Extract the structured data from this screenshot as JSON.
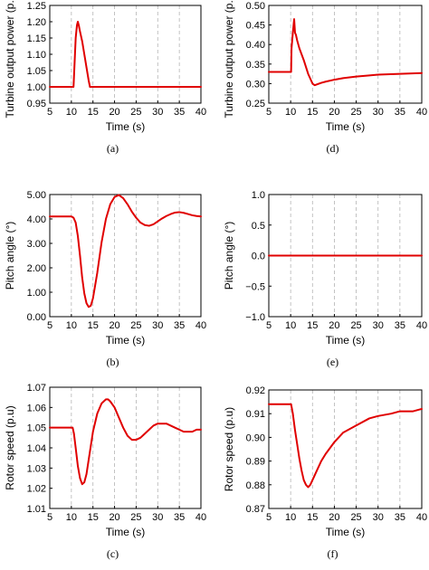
{
  "style": {
    "line_color": "#e00000",
    "grid_color": "#b4b4b4",
    "axis_color": "#000000"
  },
  "chart_data": [
    {
      "type": "line",
      "caption": "(a)",
      "xlabel": "Time (s)",
      "ylabel": "Turbine output power (p.u)",
      "xlim": [
        5,
        40
      ],
      "ylim": [
        0.95,
        1.25
      ],
      "xticks": [
        5,
        10,
        15,
        20,
        25,
        30,
        35,
        40
      ],
      "yticks": [
        0.95,
        1.0,
        1.05,
        1.1,
        1.15,
        1.2,
        1.25
      ],
      "ytick_labels": [
        "0.95",
        "1.00",
        "1.05",
        "1.10",
        "1.15",
        "1.20",
        "1.25"
      ],
      "grid": "vertical-dashed",
      "x": [
        5,
        10.5,
        10.6,
        11,
        11.3,
        11.5,
        11.7,
        12,
        12.5,
        13,
        13.5,
        14,
        14.3,
        15,
        20,
        25,
        30,
        35,
        40
      ],
      "y": [
        1.0,
        1.0,
        1.03,
        1.15,
        1.19,
        1.2,
        1.19,
        1.17,
        1.14,
        1.1,
        1.06,
        1.02,
        1.0,
        1.0,
        1.0,
        1.0,
        1.0,
        1.0,
        1.0
      ]
    },
    {
      "type": "line",
      "caption": "(d)",
      "xlabel": "Time (s)",
      "ylabel": "Turbine output power (p.u)",
      "xlim": [
        5,
        40
      ],
      "ylim": [
        0.25,
        0.5
      ],
      "xticks": [
        5,
        10,
        15,
        20,
        25,
        30,
        35,
        40
      ],
      "yticks": [
        0.25,
        0.3,
        0.35,
        0.4,
        0.45,
        0.5
      ],
      "ytick_labels": [
        "0.25",
        "0.30",
        "0.35",
        "0.40",
        "0.45",
        "0.50"
      ],
      "grid": "vertical-dashed",
      "x": [
        5,
        10.1,
        10.2,
        10.5,
        10.8,
        11,
        11.2,
        11.5,
        12,
        13,
        14,
        15,
        15.5,
        16,
        17,
        18,
        20,
        22,
        25,
        28,
        30,
        35,
        40
      ],
      "y": [
        0.33,
        0.33,
        0.39,
        0.43,
        0.465,
        0.43,
        0.425,
        0.41,
        0.39,
        0.36,
        0.325,
        0.3,
        0.296,
        0.298,
        0.302,
        0.305,
        0.31,
        0.314,
        0.318,
        0.321,
        0.323,
        0.325,
        0.327
      ]
    },
    {
      "type": "line",
      "caption": "(b)",
      "xlabel": "Time (s)",
      "ylabel": "Pitch angle (°)",
      "xlim": [
        5,
        40
      ],
      "ylim": [
        0.0,
        5.0
      ],
      "xticks": [
        5,
        10,
        15,
        20,
        25,
        30,
        35,
        40
      ],
      "yticks": [
        0,
        1,
        2,
        3,
        4,
        5
      ],
      "ytick_labels": [
        "0.00",
        "1.00",
        "2.00",
        "3.00",
        "4.00",
        "5.00"
      ],
      "grid": "vertical-dashed",
      "x": [
        5,
        10,
        10.5,
        11,
        11.5,
        12,
        12.5,
        13,
        13.5,
        14,
        14.5,
        15,
        16,
        17,
        18,
        19,
        20,
        21,
        22,
        23,
        24,
        25,
        26,
        27,
        28,
        29,
        30,
        31,
        32,
        33,
        34,
        35,
        36,
        37,
        38,
        39,
        40
      ],
      "y": [
        4.1,
        4.1,
        4.05,
        3.85,
        3.3,
        2.5,
        1.6,
        0.95,
        0.55,
        0.4,
        0.45,
        0.75,
        1.8,
        3.05,
        4.0,
        4.6,
        4.9,
        4.98,
        4.85,
        4.6,
        4.3,
        4.05,
        3.85,
        3.75,
        3.72,
        3.78,
        3.9,
        4.02,
        4.12,
        4.2,
        4.26,
        4.28,
        4.25,
        4.2,
        4.15,
        4.12,
        4.1
      ]
    },
    {
      "type": "line",
      "caption": "(e)",
      "xlabel": "Time (s)",
      "ylabel": "Pitch angle (°)",
      "xlim": [
        5,
        40
      ],
      "ylim": [
        -1.0,
        1.0
      ],
      "xticks": [
        5,
        10,
        15,
        20,
        25,
        30,
        35,
        40
      ],
      "yticks": [
        -1.0,
        -0.5,
        0.0,
        0.5,
        1.0
      ],
      "ytick_labels": [
        "−1.0",
        "−0.5",
        "0.0",
        "0.5",
        "1.0"
      ],
      "grid": "vertical-dashed",
      "x": [
        5,
        40
      ],
      "y": [
        0.0,
        0.0
      ]
    },
    {
      "type": "line",
      "caption": "(c)",
      "xlabel": "Time (s)",
      "ylabel": "Rotor speed (p.u)",
      "xlim": [
        5,
        40
      ],
      "ylim": [
        1.01,
        1.07
      ],
      "xticks": [
        5,
        10,
        15,
        20,
        25,
        30,
        35,
        40
      ],
      "yticks": [
        1.01,
        1.02,
        1.03,
        1.04,
        1.05,
        1.06,
        1.07
      ],
      "ytick_labels": [
        "1.01",
        "1.02",
        "1.03",
        "1.04",
        "1.05",
        "1.06",
        "1.07"
      ],
      "grid": "vertical-dashed",
      "x": [
        5,
        10.3,
        10.6,
        11,
        11.5,
        12,
        12.5,
        13,
        13.5,
        14,
        14.5,
        15,
        16,
        17,
        18,
        18.5,
        19,
        20,
        21,
        22,
        23,
        24,
        25,
        26,
        27,
        28,
        29,
        30,
        31,
        32,
        33,
        34,
        35,
        36,
        37,
        38,
        39,
        40
      ],
      "y": [
        1.05,
        1.05,
        1.047,
        1.04,
        1.031,
        1.025,
        1.022,
        1.023,
        1.027,
        1.034,
        1.041,
        1.048,
        1.057,
        1.062,
        1.064,
        1.064,
        1.063,
        1.06,
        1.055,
        1.05,
        1.046,
        1.044,
        1.044,
        1.045,
        1.047,
        1.049,
        1.051,
        1.052,
        1.052,
        1.052,
        1.051,
        1.05,
        1.049,
        1.048,
        1.048,
        1.048,
        1.049,
        1.049
      ]
    },
    {
      "type": "line",
      "caption": "(f)",
      "xlabel": "Time (s)",
      "ylabel": "Rotor speed (p.u)",
      "xlim": [
        5,
        40
      ],
      "ylim": [
        0.87,
        0.92
      ],
      "xticks": [
        5,
        10,
        15,
        20,
        25,
        30,
        35,
        40
      ],
      "yticks": [
        0.87,
        0.88,
        0.89,
        0.9,
        0.91,
        0.92
      ],
      "ytick_labels": [
        "0.87",
        "0.88",
        "0.89",
        "0.90",
        "0.91",
        "0.92"
      ],
      "grid": "vertical-dashed",
      "x": [
        5,
        10.1,
        10.5,
        11,
        11.5,
        12,
        12.5,
        13,
        13.5,
        14,
        14.5,
        15,
        16,
        17,
        18,
        20,
        22,
        25,
        28,
        30,
        33,
        35,
        38,
        40
      ],
      "y": [
        0.914,
        0.914,
        0.91,
        0.903,
        0.897,
        0.891,
        0.886,
        0.882,
        0.88,
        0.879,
        0.88,
        0.882,
        0.886,
        0.89,
        0.893,
        0.898,
        0.902,
        0.905,
        0.908,
        0.909,
        0.91,
        0.911,
        0.911,
        0.912
      ]
    }
  ]
}
